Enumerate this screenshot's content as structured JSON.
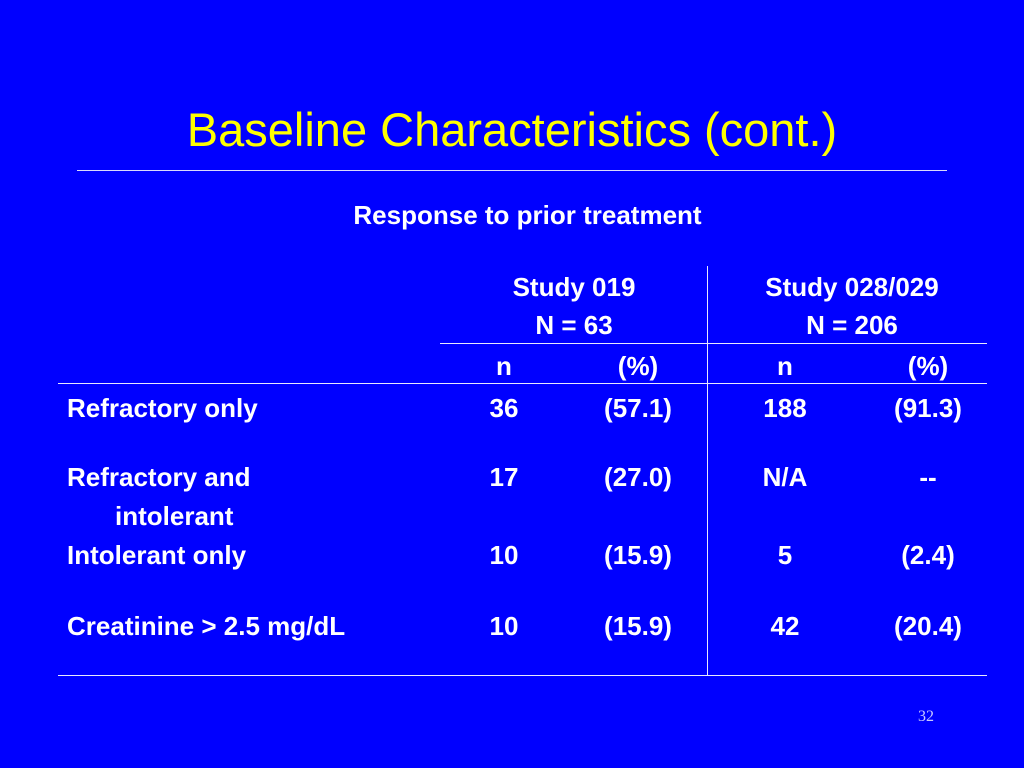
{
  "slide": {
    "title": "Baseline Characteristics (cont.)",
    "subtitle": "Response to prior treatment",
    "page_number": "32"
  },
  "table": {
    "groups": [
      {
        "study": "Study 019",
        "n_total": "N = 63"
      },
      {
        "study": "Study 028/029",
        "n_total": "N = 206"
      }
    ],
    "subheaders": {
      "n": "n",
      "pct": "(%)"
    },
    "rows": [
      {
        "label": "Refractory only",
        "label_cont": "",
        "g1_n": "36",
        "g1_pct": "(57.1)",
        "g2_n": "188",
        "g2_pct": "(91.3)"
      },
      {
        "label": "Refractory and",
        "label_cont": "intolerant",
        "g1_n": "17",
        "g1_pct": "(27.0)",
        "g2_n": "N/A",
        "g2_pct": "--"
      },
      {
        "label": "Intolerant only",
        "label_cont": "",
        "g1_n": "10",
        "g1_pct": "(15.9)",
        "g2_n": "5",
        "g2_pct": "(2.4)"
      },
      {
        "label": "Creatinine > 2.5 mg/dL",
        "label_cont": "",
        "g1_n": "10",
        "g1_pct": "(15.9)",
        "g2_n": "42",
        "g2_pct": "(20.4)"
      }
    ]
  }
}
